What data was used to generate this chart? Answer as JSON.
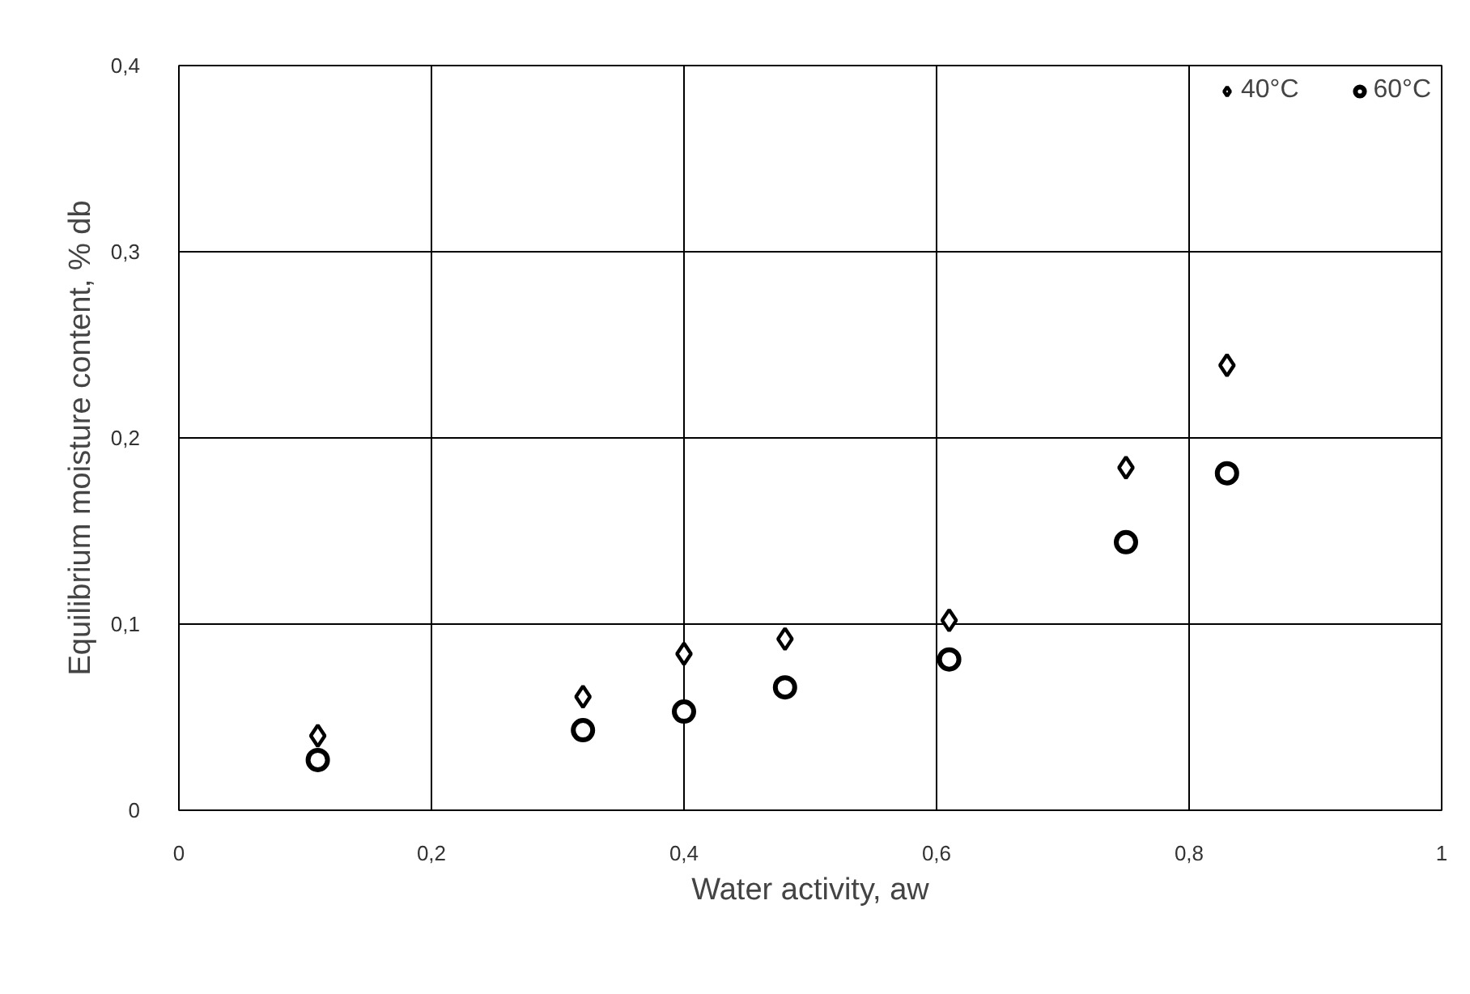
{
  "chart_data": {
    "type": "scatter",
    "xlabel": "Water activity, aw",
    "ylabel": "Equilibrium moisture content, % db",
    "x": [
      0.11,
      0.32,
      0.4,
      0.48,
      0.61,
      0.75,
      0.83
    ],
    "series": [
      {
        "name": "40°C",
        "color": "#000000",
        "marker": "diamond",
        "values": [
          0.04,
          0.061,
          0.084,
          0.092,
          0.102,
          0.184,
          0.239
        ]
      },
      {
        "name": "60°C",
        "color": "#000000",
        "marker": "circle",
        "values": [
          0.027,
          0.043,
          0.053,
          0.066,
          0.081,
          0.144,
          0.181
        ]
      }
    ],
    "xlim": [
      0,
      1
    ],
    "ylim": [
      0,
      0.4
    ],
    "xticks": [
      0,
      {
        "value": 0.2,
        "label": "0,2"
      },
      {
        "value": 0.4,
        "label": "0,4"
      },
      {
        "value": 0.6,
        "label": "0,6"
      },
      {
        "value": 0.8,
        "label": "0,8"
      },
      1
    ],
    "yticks": [
      0,
      {
        "value": 0.1,
        "label": "0,1"
      },
      {
        "value": 0.2,
        "label": "0,2"
      },
      {
        "value": 0.3,
        "label": "0,3"
      },
      {
        "value": 0.4,
        "label": "0,4"
      }
    ],
    "grid": true,
    "legend": "top right"
  }
}
